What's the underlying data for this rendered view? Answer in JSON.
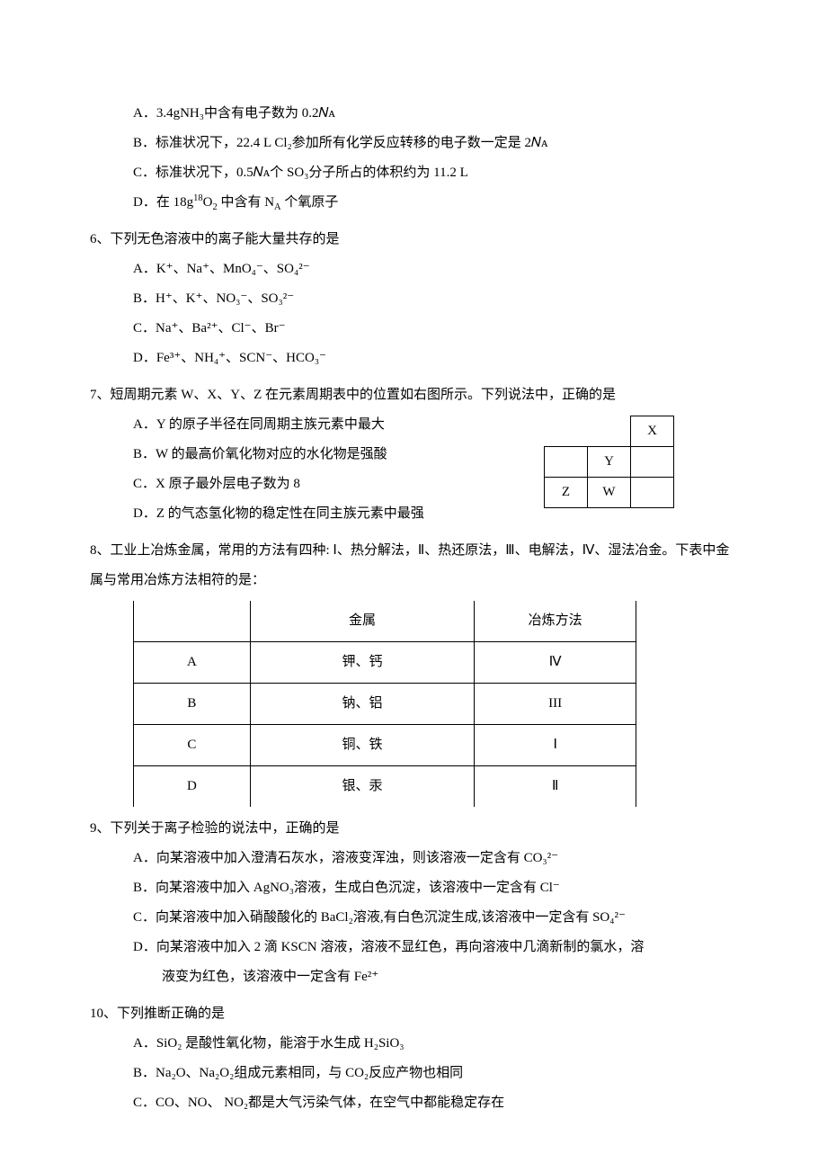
{
  "q5": {
    "A": "A．3.4gNH₃中含有电子数为 0.2𝑁ᴀ",
    "B": "B．标准状况下，22.4 L Cl₂参加所有化学反应转移的电子数一定是 2𝑁ᴀ",
    "C": "C．标准状况下，0.5𝑁ᴀ个 SO₃分子所占的体积约为 11.2 L",
    "D_prefix": "D．在",
    "D_formula_base": "18g",
    "D_formula_sup": "18",
    "D_formula_o2": "O",
    "D_formula_o2sub": "2",
    "D_mid": "中含有",
    "D_na_n": "N",
    "D_na_a": "A",
    "D_suffix": "个氧原子"
  },
  "q6": {
    "stem": "6、下列无色溶液中的离子能大量共存的是",
    "A": "A．K⁺、Na⁺、MnO₄⁻、SO₄²⁻",
    "B": "B．H⁺、K⁺、NO₃⁻、SO₃²⁻",
    "C": "C．Na⁺、Ba²⁺、Cl⁻、Br⁻",
    "D": "D．Fe³⁺、NH₄⁺、SCN⁻、HCO₃⁻"
  },
  "q7": {
    "stem": "7、短周期元素 W、X、Y、Z 在元素周期表中的位置如右图所示。下列说法中，正确的是",
    "A": "A．Y 的原子半径在同周期主族元素中最大",
    "B": "B．W 的最高价氧化物对应的水化物是强酸",
    "C": "C．X 原子最外层电子数为 8",
    "D": "D．Z 的气态氢化物的稳定性在同主族元素中最强",
    "table": {
      "cells": [
        [
          "",
          "",
          "X"
        ],
        [
          "",
          "Y",
          ""
        ],
        [
          "Z",
          "W",
          ""
        ]
      ],
      "visible": [
        [
          false,
          false,
          true
        ],
        [
          true,
          true,
          true
        ],
        [
          true,
          true,
          true
        ]
      ]
    }
  },
  "q8": {
    "stem": "8、工业上冶炼金属，常用的方法有四种: Ⅰ、热分解法，Ⅱ、热还原法，Ⅲ、电解法，Ⅳ、湿法冶金。下表中金属与常用冶炼方法相符的是：",
    "columns": [
      "",
      "金属",
      "冶炼方法"
    ],
    "rows": [
      [
        "A",
        "钾、钙",
        "Ⅳ"
      ],
      [
        "B",
        "钠、铝",
        "III"
      ],
      [
        "C",
        "铜、铁",
        "Ⅰ"
      ],
      [
        "D",
        "银、汞",
        "Ⅱ"
      ]
    ]
  },
  "q9": {
    "stem": "9、下列关于离子检验的说法中，正确的是",
    "A": "A．向某溶液中加入澄清石灰水，溶液变浑浊，则该溶液一定含有 CO₃²⁻",
    "B": "B．向某溶液中加入 AgNO₃溶液，生成白色沉淀，该溶液中一定含有 Cl⁻",
    "C": "C．向某溶液中加入硝酸酸化的 BaCl₂溶液,有白色沉淀生成,该溶液中一定含有 SO₄²⁻",
    "D1": "D．向某溶液中加入 2 滴 KSCN 溶液，溶液不显红色，再向溶液中几滴新制的氯水，溶",
    "D2": "液变为红色，该溶液中一定含有 Fe²⁺"
  },
  "q10": {
    "stem": "10、下列推断正确的是",
    "A": "A．SiO₂ 是酸性氧化物，能溶于水生成 H₂SiO₃",
    "B": "B．Na₂O、Na₂O₂组成元素相同，与 CO₂反应产物也相同",
    "C": "C．CO、NO、 NO₂都是大气污染气体，在空气中都能稳定存在"
  }
}
